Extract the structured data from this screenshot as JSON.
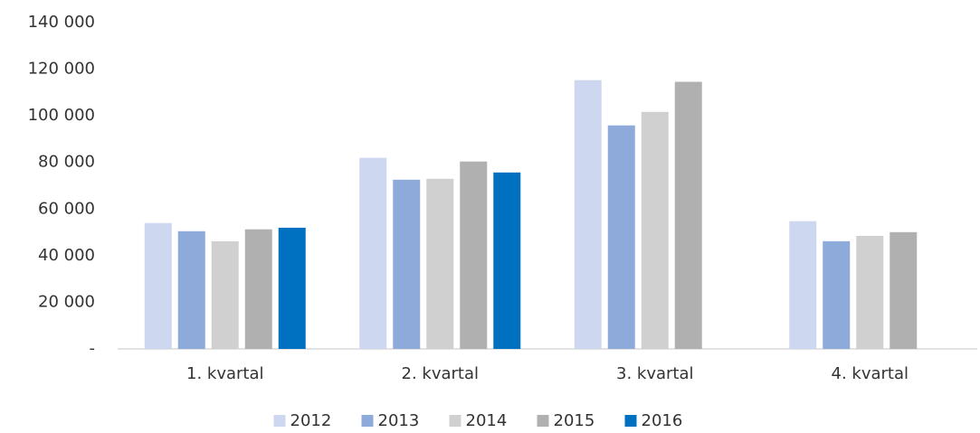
{
  "chart_data": {
    "type": "bar",
    "categories": [
      "1. kvartal",
      "2. kvartal",
      "3. kvartal",
      "4. kvartal"
    ],
    "series": [
      {
        "name": "2012",
        "color": "#cdd7ef",
        "values": [
          54000,
          82000,
          115300,
          54800
        ]
      },
      {
        "name": "2013",
        "color": "#8eaadb",
        "values": [
          50500,
          72600,
          95900,
          46200
        ]
      },
      {
        "name": "2014",
        "color": "#d0d0d0",
        "values": [
          46200,
          73000,
          101700,
          48500
        ]
      },
      {
        "name": "2015",
        "color": "#b0b0b0",
        "values": [
          51300,
          80400,
          114600,
          50100
        ]
      },
      {
        "name": "2016",
        "color": "#0070c0",
        "values": [
          52000,
          75700,
          null,
          null
        ]
      }
    ],
    "ylim": [
      0,
      140000
    ],
    "yticks": [
      {
        "value": 0,
        "label": "-"
      },
      {
        "value": 20000,
        "label": "20 000"
      },
      {
        "value": 40000,
        "label": "40 000"
      },
      {
        "value": 60000,
        "label": "60 000"
      },
      {
        "value": 80000,
        "label": "80 000"
      },
      {
        "value": 100000,
        "label": "100 000"
      },
      {
        "value": 120000,
        "label": "120 000"
      },
      {
        "value": 140000,
        "label": "140 000"
      }
    ],
    "grid": false,
    "legend": "bottom"
  }
}
